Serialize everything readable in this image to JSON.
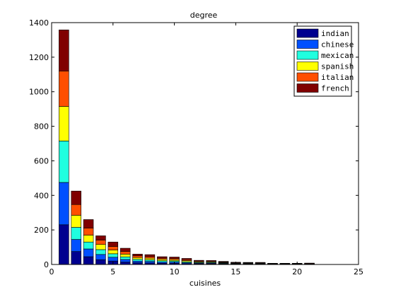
{
  "chart_data": {
    "type": "bar",
    "stacked": true,
    "title": "degree",
    "xlabel": "cuisines",
    "ylabel": "",
    "xlim": [
      0,
      25
    ],
    "ylim": [
      0,
      1400
    ],
    "xticks": [
      0,
      5,
      10,
      15,
      20,
      25
    ],
    "yticks": [
      0,
      200,
      400,
      600,
      800,
      1000,
      1200,
      1400
    ],
    "grid": false,
    "legend_position": "top-right",
    "x": [
      1,
      2,
      3,
      4,
      5,
      6,
      7,
      8,
      9,
      10,
      11,
      12,
      13,
      14,
      15,
      16,
      17,
      18,
      19,
      20,
      21
    ],
    "series": [
      {
        "name": "indian",
        "color": "#00008f",
        "values": [
          230,
          75,
          45,
          28,
          20,
          14,
          10,
          9,
          7,
          7,
          5,
          4,
          3,
          3,
          2,
          2,
          1,
          1,
          1,
          1,
          1
        ]
      },
      {
        "name": "chinese",
        "color": "#0050ff",
        "values": [
          245,
          70,
          45,
          30,
          22,
          15,
          10,
          9,
          7,
          7,
          5,
          4,
          4,
          3,
          2,
          2,
          2,
          1,
          1,
          1,
          1
        ]
      },
      {
        "name": "mexican",
        "color": "#20ffdf",
        "values": [
          240,
          70,
          40,
          28,
          20,
          15,
          10,
          9,
          8,
          7,
          6,
          4,
          4,
          3,
          2,
          2,
          2,
          1,
          1,
          1,
          1
        ]
      },
      {
        "name": "spanish",
        "color": "#ffff00",
        "values": [
          200,
          70,
          40,
          30,
          22,
          16,
          10,
          9,
          8,
          7,
          6,
          4,
          4,
          3,
          2,
          2,
          2,
          1,
          1,
          1,
          1
        ]
      },
      {
        "name": "italian",
        "color": "#ff4f00",
        "values": [
          205,
          62,
          40,
          25,
          20,
          15,
          10,
          9,
          7,
          7,
          6,
          4,
          4,
          3,
          2,
          2,
          2,
          1,
          1,
          1,
          1
        ]
      },
      {
        "name": "french",
        "color": "#800000",
        "values": [
          238,
          78,
          50,
          25,
          26,
          19,
          10,
          12,
          8,
          8,
          7,
          4,
          4,
          3,
          3,
          2,
          3,
          2,
          2,
          2,
          3
        ]
      }
    ]
  }
}
